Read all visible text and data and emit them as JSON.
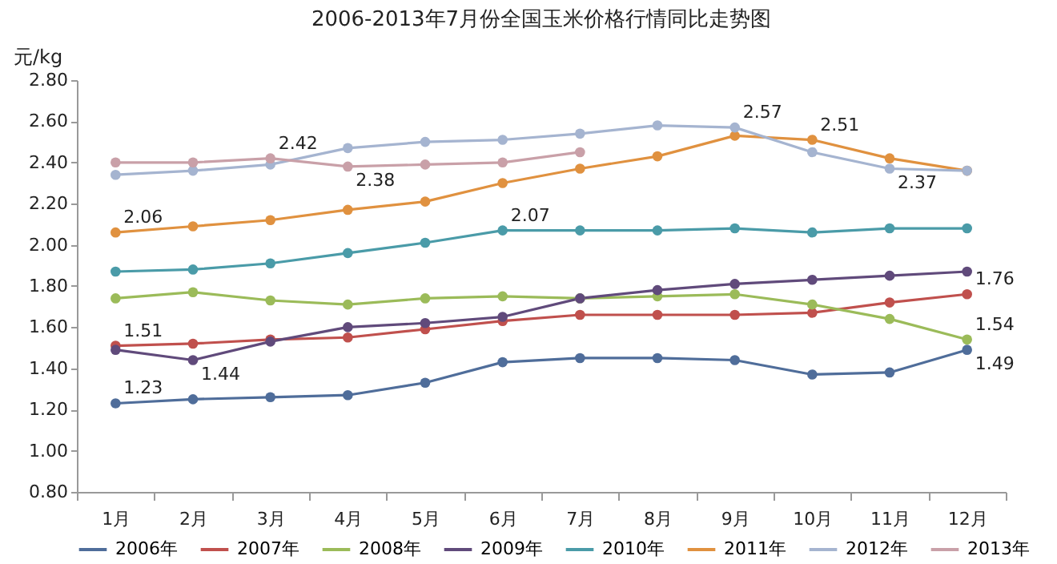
{
  "chart_data": {
    "type": "line",
    "title": "2006-2013年7月份全国玉米价格行情同比走势图",
    "ylabel": "元/kg",
    "categories": [
      "1月",
      "2月",
      "3月",
      "4月",
      "5月",
      "6月",
      "7月",
      "8月",
      "9月",
      "10月",
      "11月",
      "12月"
    ],
    "ylim": [
      0.8,
      2.8
    ],
    "yticks": [
      {
        "value": 0.8,
        "label": "0.80"
      },
      {
        "value": 1,
        "label": "1.00"
      },
      {
        "value": 1.2,
        "label": "1.20"
      },
      {
        "value": 1.4,
        "label": "1.40"
      },
      {
        "value": 1.6,
        "label": "1.60"
      },
      {
        "value": 1.8,
        "label": "1.80"
      },
      {
        "value": 2,
        "label": "2.00"
      },
      {
        "value": 2.2,
        "label": "2.20"
      },
      {
        "value": 2.4,
        "label": "2.40"
      },
      {
        "value": 2.6,
        "label": "2.60"
      },
      {
        "value": 2.8,
        "label": "2.80"
      }
    ],
    "grid": false,
    "legend": "bottom",
    "marker": "circle",
    "line_style": "solid",
    "series": [
      {
        "name": "2006年",
        "color": "#4f6d9a",
        "values": [
          1.23,
          1.25,
          1.26,
          1.27,
          1.33,
          1.43,
          1.45,
          1.45,
          1.44,
          1.37,
          1.38,
          1.49
        ],
        "value_labels": [
          "1.23",
          null,
          null,
          null,
          null,
          null,
          null,
          null,
          null,
          null,
          null,
          "1.49"
        ]
      },
      {
        "name": "2007年",
        "color": "#c0504d",
        "values": [
          1.51,
          1.52,
          1.54,
          1.55,
          1.59,
          1.63,
          1.66,
          1.66,
          1.66,
          1.67,
          1.72,
          1.76
        ],
        "value_labels": [
          "1.51",
          null,
          null,
          null,
          null,
          null,
          null,
          null,
          null,
          null,
          null,
          "1.76"
        ]
      },
      {
        "name": "2008年",
        "color": "#9bbb59",
        "values": [
          1.74,
          1.77,
          1.73,
          1.71,
          1.74,
          1.75,
          1.74,
          1.75,
          1.76,
          1.71,
          1.64,
          1.54
        ],
        "value_labels": [
          null,
          null,
          null,
          null,
          null,
          null,
          null,
          null,
          null,
          null,
          null,
          "1.54"
        ]
      },
      {
        "name": "2009年",
        "color": "#604a7b",
        "values": [
          1.49,
          1.44,
          1.53,
          1.6,
          1.62,
          1.65,
          1.74,
          1.78,
          1.81,
          1.83,
          1.85,
          1.87
        ],
        "value_labels": [
          null,
          "1.44",
          null,
          null,
          null,
          null,
          null,
          null,
          null,
          null,
          null,
          null
        ]
      },
      {
        "name": "2010年",
        "color": "#4a9ba8",
        "values": [
          1.87,
          1.88,
          1.91,
          1.96,
          2.01,
          2.07,
          2.07,
          2.07,
          2.08,
          2.06,
          2.08,
          2.08
        ],
        "value_labels": [
          null,
          null,
          null,
          null,
          null,
          "2.07",
          null,
          null,
          null,
          null,
          null,
          null
        ]
      },
      {
        "name": "2011年",
        "color": "#e0913f",
        "values": [
          2.06,
          2.09,
          2.12,
          2.17,
          2.21,
          2.3,
          2.37,
          2.43,
          2.53,
          2.51,
          2.42,
          2.36
        ],
        "value_labels": [
          "2.06",
          null,
          null,
          null,
          null,
          null,
          null,
          null,
          null,
          "2.51",
          null,
          null
        ]
      },
      {
        "name": "2012年",
        "color": "#a5b4d0",
        "values": [
          2.34,
          2.36,
          2.39,
          2.47,
          2.5,
          2.51,
          2.54,
          2.58,
          2.57,
          2.45,
          2.37,
          2.36
        ],
        "value_labels": [
          null,
          null,
          null,
          null,
          null,
          null,
          null,
          null,
          "2.57",
          null,
          "2.37",
          null
        ]
      },
      {
        "name": "2013年",
        "color": "#c9a0a8",
        "values": [
          2.4,
          2.4,
          2.42,
          2.38,
          2.39,
          2.4,
          2.45,
          null,
          null,
          null,
          null,
          null
        ],
        "value_labels": [
          null,
          null,
          "2.42",
          "2.38",
          null,
          null,
          null,
          null,
          null,
          null,
          null,
          null
        ]
      }
    ]
  }
}
